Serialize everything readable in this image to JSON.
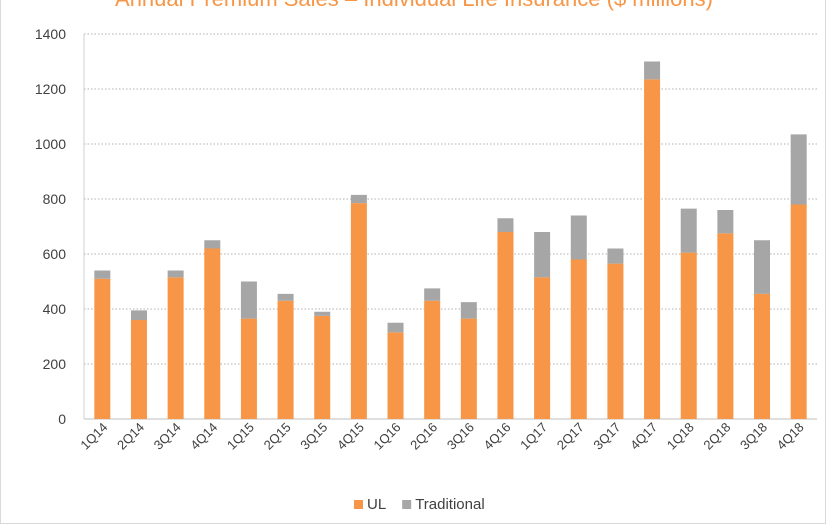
{
  "chart_data": {
    "type": "bar",
    "stacked": true,
    "title": "Annual Premium Sales – Individual Life Insurance ($ millions)",
    "categories": [
      "1Q14",
      "2Q14",
      "3Q14",
      "4Q14",
      "1Q15",
      "2Q15",
      "3Q15",
      "4Q15",
      "1Q16",
      "2Q16",
      "3Q16",
      "4Q16",
      "1Q17",
      "2Q17",
      "3Q17",
      "4Q17",
      "1Q18",
      "2Q18",
      "3Q18",
      "4Q18"
    ],
    "series": [
      {
        "name": "UL",
        "color": "#f79646",
        "values": [
          510,
          360,
          515,
          620,
          365,
          430,
          375,
          785,
          315,
          430,
          365,
          680,
          515,
          580,
          565,
          1235,
          605,
          675,
          455,
          780
        ]
      },
      {
        "name": "Traditional",
        "color": "#a6a6a6",
        "values": [
          30,
          35,
          25,
          30,
          135,
          25,
          15,
          30,
          35,
          45,
          60,
          50,
          165,
          160,
          55,
          65,
          160,
          85,
          195,
          255
        ]
      }
    ],
    "ylim": [
      0,
      1400
    ],
    "yticks": [
      "0",
      "200",
      "400",
      "600",
      "800",
      "1000",
      "1200",
      "1400"
    ],
    "grid": true,
    "legend": "bottom"
  }
}
